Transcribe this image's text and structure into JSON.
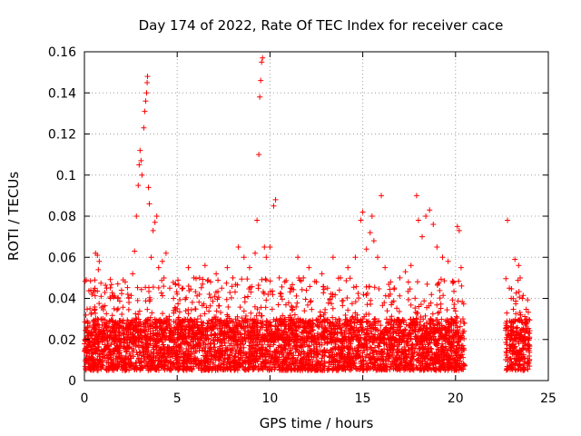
{
  "chart_data": {
    "type": "scatter",
    "title": "Day 174 of 2022, Rate Of TEC Index for receiver cace",
    "xlabel": "GPS time / hours",
    "ylabel": "ROTI / TECUs",
    "xlim": [
      0,
      25
    ],
    "ylim": [
      0,
      0.16
    ],
    "xticks": [
      0,
      5,
      10,
      15,
      20,
      25
    ],
    "xtick_labels": [
      "0",
      "5",
      "10",
      "15",
      "20",
      "25"
    ],
    "yticks": [
      0,
      0.02,
      0.04,
      0.06,
      0.08,
      0.1,
      0.12,
      0.14,
      0.16
    ],
    "ytick_labels": [
      "0",
      "0.02",
      "0.04",
      "0.06",
      "0.08",
      "0.1",
      "0.12",
      "0.14",
      "0.16"
    ],
    "grid": true,
    "marker": "plus",
    "color": "#ff0000",
    "series": [
      {
        "points": [
          [
            0.1,
            0.015
          ],
          [
            0.2,
            0.022
          ],
          [
            0.3,
            0.035
          ],
          [
            0.4,
            0.042
          ],
          [
            0.5,
            0.044
          ],
          [
            0.6,
            0.062
          ],
          [
            0.7,
            0.061
          ],
          [
            0.75,
            0.054
          ],
          [
            0.8,
            0.058
          ],
          [
            0.9,
            0.041
          ],
          [
            1.0,
            0.03
          ],
          [
            1.2,
            0.045
          ],
          [
            1.4,
            0.04
          ],
          [
            1.6,
            0.035
          ],
          [
            1.8,
            0.047
          ],
          [
            2.0,
            0.044
          ],
          [
            2.2,
            0.048
          ],
          [
            2.4,
            0.038
          ],
          [
            2.6,
            0.052
          ],
          [
            2.7,
            0.063
          ],
          [
            2.8,
            0.08
          ],
          [
            2.9,
            0.095
          ],
          [
            2.95,
            0.105
          ],
          [
            3.0,
            0.112
          ],
          [
            3.05,
            0.107
          ],
          [
            3.1,
            0.1
          ],
          [
            3.2,
            0.123
          ],
          [
            3.25,
            0.131
          ],
          [
            3.3,
            0.136
          ],
          [
            3.35,
            0.14
          ],
          [
            3.38,
            0.145
          ],
          [
            3.4,
            0.148
          ],
          [
            3.45,
            0.094
          ],
          [
            3.5,
            0.086
          ],
          [
            3.6,
            0.06
          ],
          [
            3.7,
            0.073
          ],
          [
            3.8,
            0.077
          ],
          [
            3.9,
            0.08
          ],
          [
            4.0,
            0.055
          ],
          [
            4.2,
            0.058
          ],
          [
            4.4,
            0.062
          ],
          [
            4.6,
            0.045
          ],
          [
            4.8,
            0.04
          ],
          [
            5.0,
            0.035
          ],
          [
            5.3,
            0.045
          ],
          [
            5.6,
            0.055
          ],
          [
            5.9,
            0.05
          ],
          [
            6.2,
            0.042
          ],
          [
            6.5,
            0.056
          ],
          [
            6.8,
            0.048
          ],
          [
            7.1,
            0.052
          ],
          [
            7.4,
            0.045
          ],
          [
            7.7,
            0.055
          ],
          [
            8.0,
            0.05
          ],
          [
            8.3,
            0.065
          ],
          [
            8.6,
            0.06
          ],
          [
            8.9,
            0.055
          ],
          [
            9.2,
            0.062
          ],
          [
            9.3,
            0.078
          ],
          [
            9.4,
            0.11
          ],
          [
            9.45,
            0.138
          ],
          [
            9.5,
            0.146
          ],
          [
            9.55,
            0.155
          ],
          [
            9.6,
            0.157
          ],
          [
            9.7,
            0.065
          ],
          [
            9.8,
            0.06
          ],
          [
            10.0,
            0.065
          ],
          [
            10.2,
            0.085
          ],
          [
            10.3,
            0.088
          ],
          [
            10.5,
            0.05
          ],
          [
            10.8,
            0.048
          ],
          [
            11.1,
            0.045
          ],
          [
            11.5,
            0.06
          ],
          [
            11.8,
            0.05
          ],
          [
            12.1,
            0.055
          ],
          [
            12.5,
            0.048
          ],
          [
            12.8,
            0.052
          ],
          [
            13.1,
            0.045
          ],
          [
            13.4,
            0.06
          ],
          [
            13.8,
            0.05
          ],
          [
            14.2,
            0.055
          ],
          [
            14.6,
            0.06
          ],
          [
            14.9,
            0.078
          ],
          [
            15.0,
            0.082
          ],
          [
            15.2,
            0.064
          ],
          [
            15.4,
            0.072
          ],
          [
            15.5,
            0.08
          ],
          [
            15.6,
            0.068
          ],
          [
            15.8,
            0.06
          ],
          [
            16.0,
            0.09
          ],
          [
            16.2,
            0.055
          ],
          [
            16.5,
            0.048
          ],
          [
            17.0,
            0.05
          ],
          [
            17.3,
            0.053
          ],
          [
            17.6,
            0.056
          ],
          [
            17.9,
            0.09
          ],
          [
            18.0,
            0.078
          ],
          [
            18.2,
            0.07
          ],
          [
            18.4,
            0.08
          ],
          [
            18.6,
            0.083
          ],
          [
            18.8,
            0.076
          ],
          [
            19.0,
            0.065
          ],
          [
            19.3,
            0.06
          ],
          [
            19.6,
            0.058
          ],
          [
            19.9,
            0.048
          ],
          [
            20.1,
            0.075
          ],
          [
            20.2,
            0.073
          ],
          [
            20.3,
            0.055
          ],
          [
            20.4,
            0.03
          ],
          [
            22.8,
            0.078
          ],
          [
            22.9,
            0.045
          ],
          [
            23.0,
            0.04
          ],
          [
            23.2,
            0.059
          ],
          [
            23.4,
            0.056
          ],
          [
            23.6,
            0.04
          ],
          [
            23.8,
            0.028
          ]
        ],
        "dense_bands": [
          {
            "x": [
              0.0,
              20.5
            ],
            "y": [
              0.005,
              0.03
            ]
          },
          {
            "x": [
              22.7,
              24.0
            ],
            "y": [
              0.005,
              0.03
            ]
          }
        ]
      }
    ]
  }
}
